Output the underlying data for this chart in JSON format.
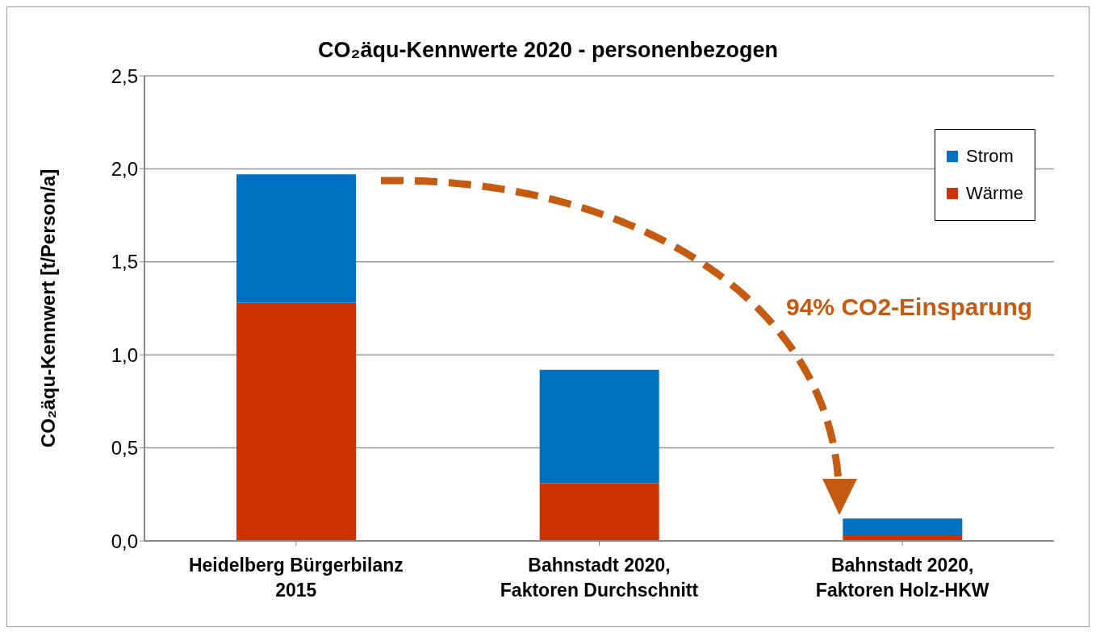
{
  "chart_data": {
    "type": "bar",
    "title": "CO₂äqu-Kennwerte 2020 -   personenbezogen",
    "ylabel": "CO₂äqu-Kennwert [t/Person/a]",
    "categories": [
      "Heidelberg Bürgerbilanz\n2015",
      "Bahnstadt 2020,\nFaktoren Durchschnitt",
      "Bahnstadt 2020,\nFaktoren Holz-HKW"
    ],
    "series": [
      {
        "name": "Wärme",
        "color": "#cc3300",
        "values": [
          1.28,
          0.31,
          0.03
        ]
      },
      {
        "name": "Strom",
        "color": "#0070c0",
        "values": [
          0.69,
          0.61,
          0.09
        ]
      }
    ],
    "stacked": true,
    "ylim": [
      0,
      2.5
    ],
    "yticks": [
      {
        "value": 0,
        "label": "0,0"
      },
      {
        "value": 0.5,
        "label": "0,5"
      },
      {
        "value": 1,
        "label": "1,0"
      },
      {
        "value": 1.5,
        "label": "1,5"
      },
      {
        "value": 2,
        "label": "2,0"
      },
      {
        "value": 2.5,
        "label": "2,5"
      }
    ],
    "grid": "y",
    "legend": "top right",
    "annotations": [
      "94% CO2-Einsparung"
    ]
  }
}
